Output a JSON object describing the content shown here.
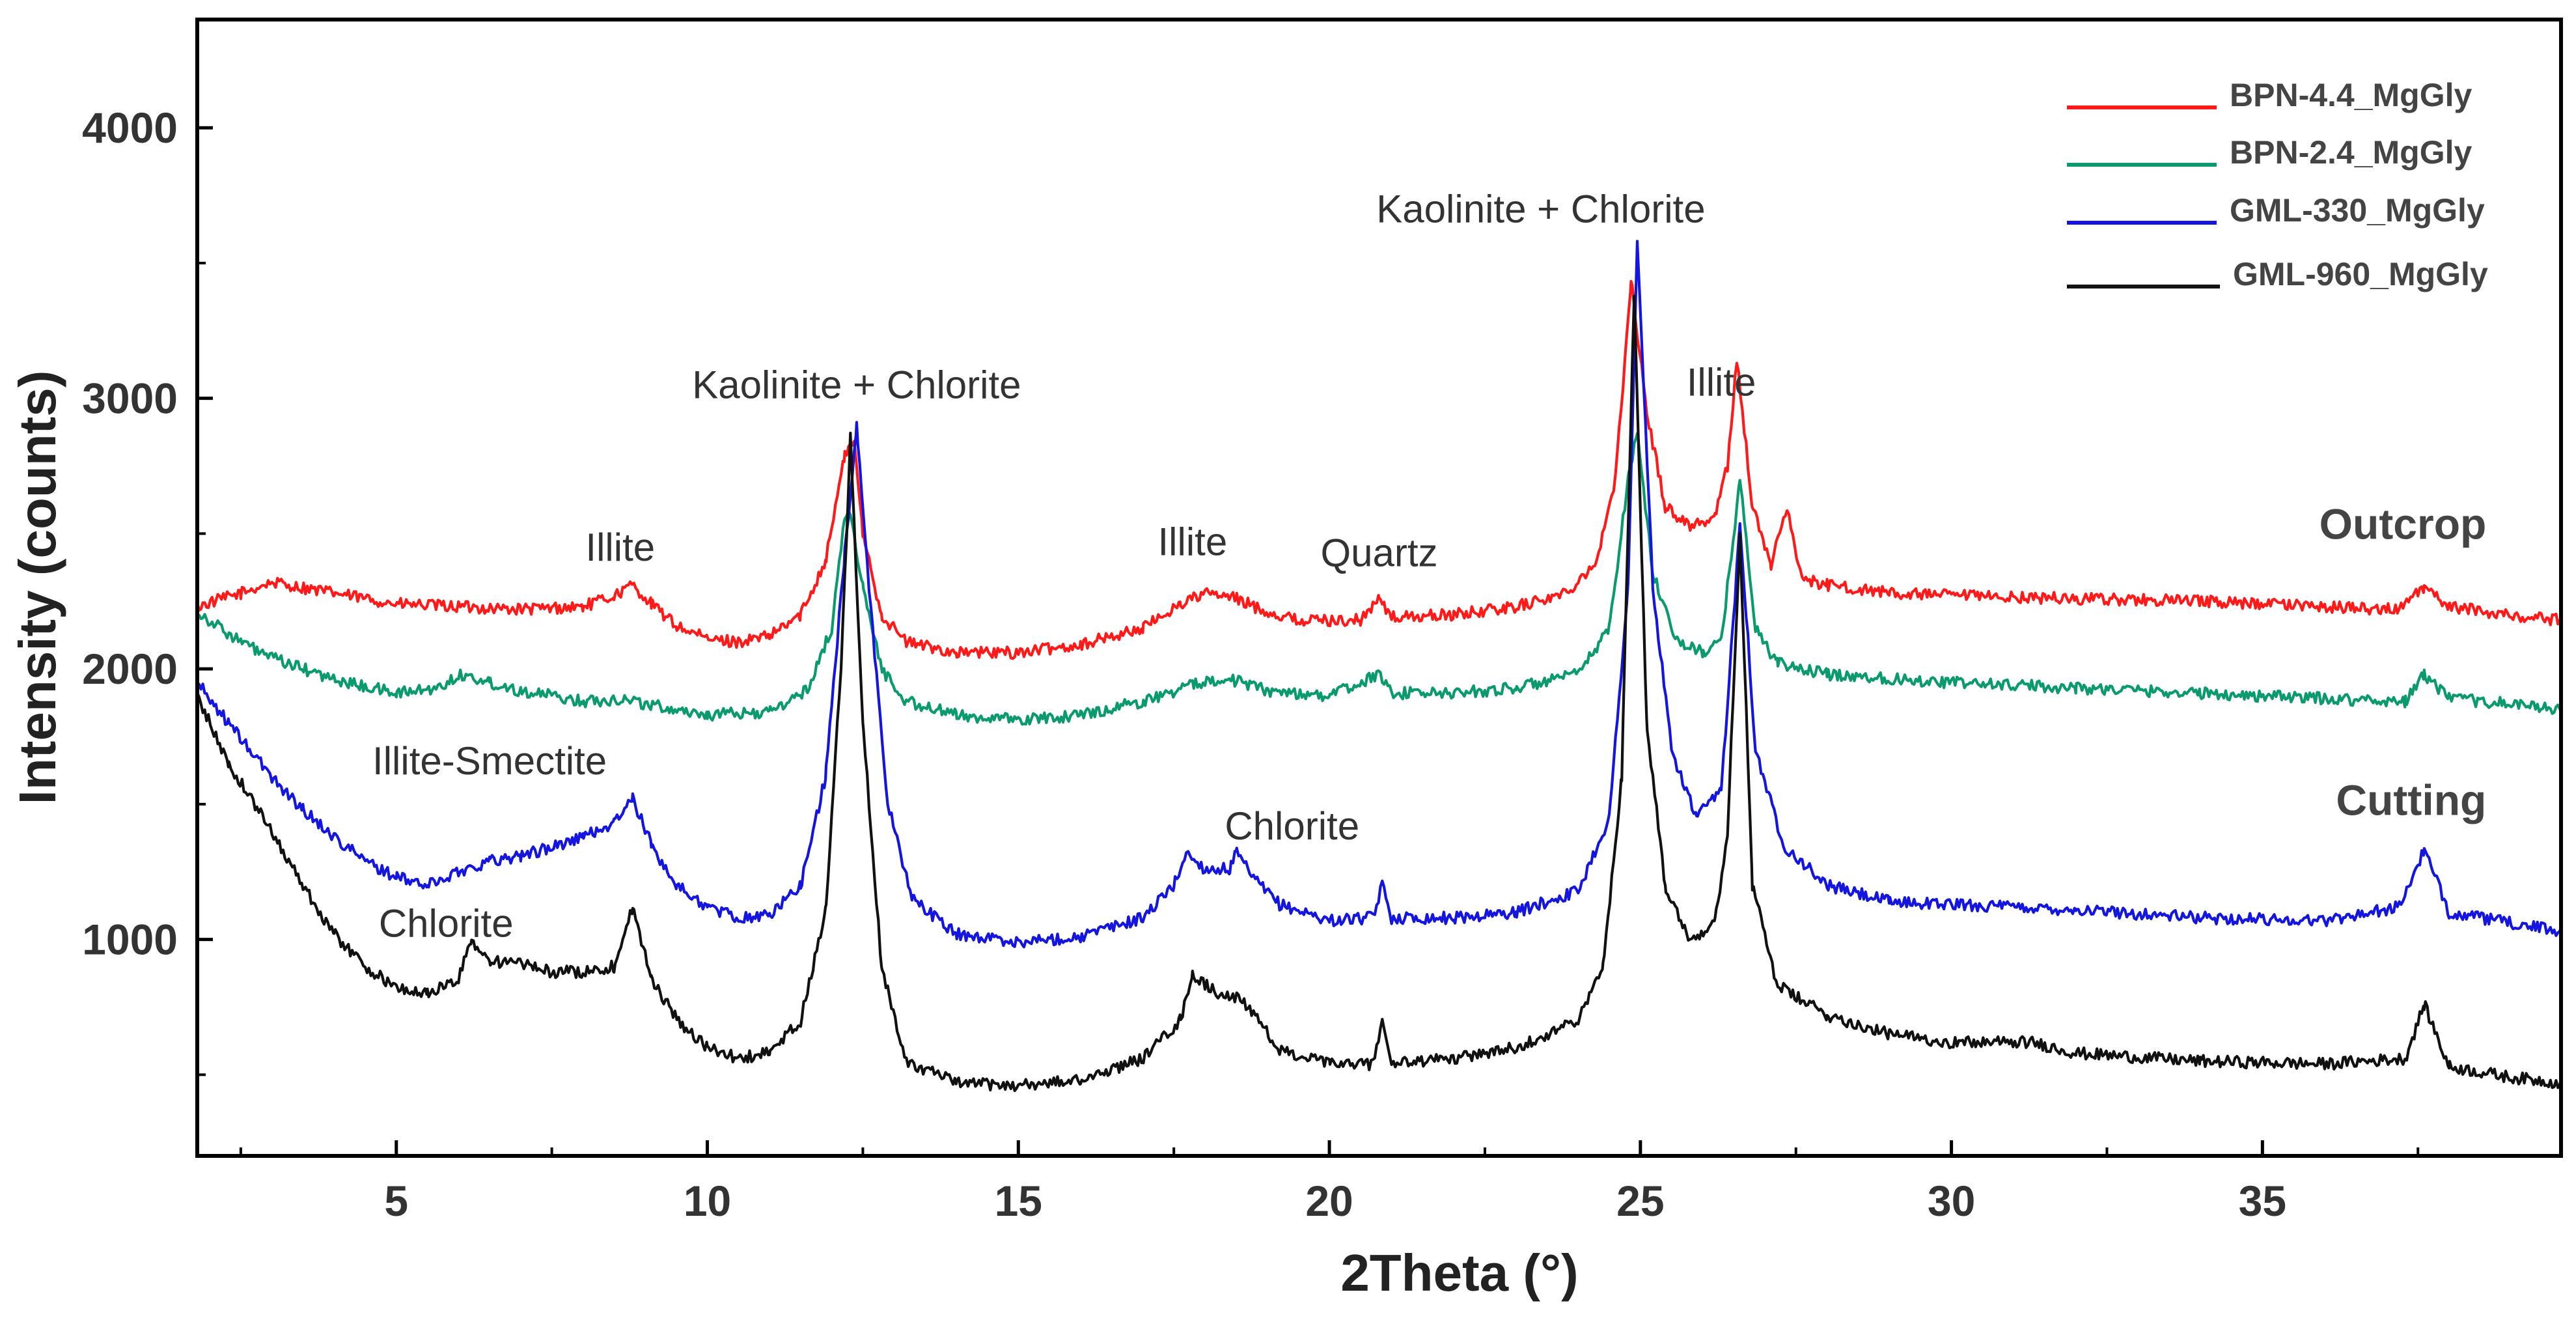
{
  "chart_data": {
    "type": "line",
    "title": "",
    "xlabel": "2Theta (°)",
    "ylabel": "Intensity (counts)",
    "xlim": [
      1.8,
      39.8
    ],
    "ylim": [
      200,
      4400
    ],
    "x_major_ticks": [
      5,
      10,
      15,
      20,
      25,
      30,
      35
    ],
    "x_tick_labels": [
      "5",
      "10",
      "15",
      "20",
      "25",
      "30",
      "35"
    ],
    "y_major_ticks": [
      1000,
      2000,
      3000,
      4000
    ],
    "y_tick_labels": [
      "1000",
      "2000",
      "3000",
      "4000"
    ],
    "legend_position": "top-right",
    "series": [
      {
        "name": "BPN-4.4_MgGly",
        "color": "#ff1a1a",
        "points": [
          [
            1.8,
            2230
          ],
          [
            2.5,
            2280
          ],
          [
            3.0,
            2320
          ],
          [
            4.0,
            2280
          ],
          [
            5.0,
            2240
          ],
          [
            6.0,
            2230
          ],
          [
            7.0,
            2220
          ],
          [
            8.0,
            2230
          ],
          [
            8.5,
            2270
          ],
          [
            8.8,
            2310
          ],
          [
            9.1,
            2240
          ],
          [
            9.5,
            2160
          ],
          [
            10.0,
            2110
          ],
          [
            10.5,
            2100
          ],
          [
            11.0,
            2120
          ],
          [
            11.5,
            2200
          ],
          [
            11.9,
            2400
          ],
          [
            12.2,
            2780
          ],
          [
            12.35,
            2850
          ],
          [
            12.5,
            2500
          ],
          [
            12.8,
            2200
          ],
          [
            13.2,
            2100
          ],
          [
            14.0,
            2060
          ],
          [
            15.0,
            2060
          ],
          [
            16.0,
            2090
          ],
          [
            17.0,
            2150
          ],
          [
            17.6,
            2240
          ],
          [
            18.0,
            2280
          ],
          [
            18.5,
            2260
          ],
          [
            19.0,
            2210
          ],
          [
            19.5,
            2180
          ],
          [
            20.5,
            2180
          ],
          [
            20.8,
            2260
          ],
          [
            21.0,
            2190
          ],
          [
            22.0,
            2200
          ],
          [
            23.0,
            2230
          ],
          [
            23.8,
            2280
          ],
          [
            24.3,
            2400
          ],
          [
            24.6,
            2700
          ],
          [
            24.85,
            3440
          ],
          [
            25.1,
            2950
          ],
          [
            25.4,
            2600
          ],
          [
            25.8,
            2530
          ],
          [
            26.2,
            2560
          ],
          [
            26.4,
            2750
          ],
          [
            26.55,
            3150
          ],
          [
            26.8,
            2600
          ],
          [
            27.1,
            2380
          ],
          [
            27.35,
            2600
          ],
          [
            27.6,
            2330
          ],
          [
            28.0,
            2310
          ],
          [
            29.0,
            2280
          ],
          [
            30.0,
            2270
          ],
          [
            32.0,
            2260
          ],
          [
            34.0,
            2250
          ],
          [
            36.0,
            2230
          ],
          [
            37.2,
            2220
          ],
          [
            37.6,
            2300
          ],
          [
            38.0,
            2230
          ],
          [
            39.0,
            2200
          ],
          [
            39.8,
            2180
          ]
        ]
      },
      {
        "name": "BPN-2.4_MgGly",
        "color": "#0a9a6e",
        "points": [
          [
            1.8,
            2210
          ],
          [
            2.5,
            2100
          ],
          [
            3.0,
            2040
          ],
          [
            4.0,
            1960
          ],
          [
            5.0,
            1910
          ],
          [
            5.7,
            1930
          ],
          [
            6.0,
            1980
          ],
          [
            6.5,
            1950
          ],
          [
            7.0,
            1920
          ],
          [
            8.0,
            1880
          ],
          [
            8.7,
            1890
          ],
          [
            9.0,
            1870
          ],
          [
            10.0,
            1830
          ],
          [
            11.0,
            1840
          ],
          [
            11.6,
            1920
          ],
          [
            12.0,
            2150
          ],
          [
            12.2,
            2550
          ],
          [
            12.3,
            2580
          ],
          [
            12.5,
            2300
          ],
          [
            12.8,
            2000
          ],
          [
            13.2,
            1880
          ],
          [
            14.0,
            1830
          ],
          [
            15.0,
            1810
          ],
          [
            16.0,
            1830
          ],
          [
            17.0,
            1880
          ],
          [
            17.8,
            1940
          ],
          [
            18.3,
            1970
          ],
          [
            19.0,
            1920
          ],
          [
            20.0,
            1900
          ],
          [
            20.8,
            1980
          ],
          [
            21.0,
            1910
          ],
          [
            22.0,
            1910
          ],
          [
            23.0,
            1930
          ],
          [
            24.0,
            1980
          ],
          [
            24.5,
            2150
          ],
          [
            24.8,
            2700
          ],
          [
            24.95,
            2880
          ],
          [
            25.2,
            2350
          ],
          [
            25.6,
            2100
          ],
          [
            26.0,
            2060
          ],
          [
            26.3,
            2100
          ],
          [
            26.45,
            2400
          ],
          [
            26.6,
            2700
          ],
          [
            26.85,
            2150
          ],
          [
            27.2,
            2020
          ],
          [
            28.0,
            1980
          ],
          [
            30.0,
            1950
          ],
          [
            32.0,
            1930
          ],
          [
            34.0,
            1910
          ],
          [
            36.0,
            1890
          ],
          [
            37.3,
            1880
          ],
          [
            37.6,
            1980
          ],
          [
            38.0,
            1890
          ],
          [
            39.0,
            1870
          ],
          [
            39.8,
            1850
          ]
        ]
      },
      {
        "name": "GML-330_MgGly",
        "color": "#1515e0",
        "points": [
          [
            1.8,
            1950
          ],
          [
            2.3,
            1800
          ],
          [
            3.0,
            1600
          ],
          [
            3.5,
            1480
          ],
          [
            4.0,
            1380
          ],
          [
            4.5,
            1290
          ],
          [
            5.0,
            1230
          ],
          [
            5.5,
            1200
          ],
          [
            6.0,
            1250
          ],
          [
            6.5,
            1290
          ],
          [
            7.0,
            1310
          ],
          [
            7.5,
            1340
          ],
          [
            8.0,
            1380
          ],
          [
            8.5,
            1430
          ],
          [
            8.8,
            1520
          ],
          [
            9.1,
            1350
          ],
          [
            9.5,
            1200
          ],
          [
            10.0,
            1120
          ],
          [
            10.5,
            1080
          ],
          [
            11.0,
            1090
          ],
          [
            11.5,
            1200
          ],
          [
            11.9,
            1600
          ],
          [
            12.2,
            2400
          ],
          [
            12.4,
            2900
          ],
          [
            12.6,
            2300
          ],
          [
            12.9,
            1500
          ],
          [
            13.3,
            1150
          ],
          [
            14.0,
            1020
          ],
          [
            15.0,
            990
          ],
          [
            16.0,
            1010
          ],
          [
            17.0,
            1080
          ],
          [
            17.5,
            1200
          ],
          [
            17.7,
            1320
          ],
          [
            18.0,
            1260
          ],
          [
            18.4,
            1260
          ],
          [
            18.5,
            1320
          ],
          [
            18.8,
            1220
          ],
          [
            19.2,
            1130
          ],
          [
            20.0,
            1070
          ],
          [
            20.7,
            1080
          ],
          [
            20.85,
            1200
          ],
          [
            21.0,
            1080
          ],
          [
            22.0,
            1080
          ],
          [
            23.0,
            1100
          ],
          [
            24.0,
            1180
          ],
          [
            24.5,
            1450
          ],
          [
            24.8,
            2300
          ],
          [
            24.95,
            3570
          ],
          [
            25.2,
            2300
          ],
          [
            25.5,
            1700
          ],
          [
            25.9,
            1450
          ],
          [
            26.3,
            1550
          ],
          [
            26.5,
            2200
          ],
          [
            26.6,
            2550
          ],
          [
            26.85,
            1700
          ],
          [
            27.3,
            1350
          ],
          [
            28.0,
            1200
          ],
          [
            29.0,
            1140
          ],
          [
            30.0,
            1130
          ],
          [
            31.0,
            1120
          ],
          [
            32.0,
            1110
          ],
          [
            34.0,
            1080
          ],
          [
            36.0,
            1070
          ],
          [
            37.2,
            1120
          ],
          [
            37.6,
            1330
          ],
          [
            38.0,
            1100
          ],
          [
            39.0,
            1060
          ],
          [
            39.8,
            1030
          ]
        ]
      },
      {
        "name": "GML-960_MgGly",
        "color": "#111111",
        "points": [
          [
            1.8,
            1900
          ],
          [
            2.3,
            1650
          ],
          [
            3.0,
            1400
          ],
          [
            3.5,
            1200
          ],
          [
            4.0,
            1020
          ],
          [
            4.5,
            900
          ],
          [
            5.0,
            820
          ],
          [
            5.5,
            800
          ],
          [
            6.0,
            850
          ],
          [
            6.2,
            1000
          ],
          [
            6.5,
            920
          ],
          [
            7.0,
            910
          ],
          [
            7.5,
            880
          ],
          [
            8.0,
            880
          ],
          [
            8.5,
            900
          ],
          [
            8.8,
            1120
          ],
          [
            9.1,
            850
          ],
          [
            9.6,
            680
          ],
          [
            10.0,
            600
          ],
          [
            10.5,
            560
          ],
          [
            11.0,
            580
          ],
          [
            11.5,
            700
          ],
          [
            11.9,
            1100
          ],
          [
            12.15,
            2000
          ],
          [
            12.3,
            2850
          ],
          [
            12.5,
            1800
          ],
          [
            12.8,
            900
          ],
          [
            13.2,
            550
          ],
          [
            14.0,
            470
          ],
          [
            15.0,
            460
          ],
          [
            16.0,
            480
          ],
          [
            17.0,
            560
          ],
          [
            17.6,
            700
          ],
          [
            17.8,
            870
          ],
          [
            18.2,
            800
          ],
          [
            18.6,
            780
          ],
          [
            19.2,
            590
          ],
          [
            20.0,
            540
          ],
          [
            20.7,
            540
          ],
          [
            20.85,
            700
          ],
          [
            21.0,
            540
          ],
          [
            22.0,
            560
          ],
          [
            23.0,
            600
          ],
          [
            24.0,
            700
          ],
          [
            24.4,
            900
          ],
          [
            24.7,
            1600
          ],
          [
            24.9,
            3400
          ],
          [
            25.1,
            1800
          ],
          [
            25.4,
            1200
          ],
          [
            25.8,
            1000
          ],
          [
            26.2,
            1060
          ],
          [
            26.4,
            1400
          ],
          [
            26.6,
            2500
          ],
          [
            26.8,
            1200
          ],
          [
            27.2,
            830
          ],
          [
            28.0,
            720
          ],
          [
            29.0,
            650
          ],
          [
            30.0,
            620
          ],
          [
            31.3,
            620
          ],
          [
            32.0,
            580
          ],
          [
            34.0,
            550
          ],
          [
            36.0,
            540
          ],
          [
            37.3,
            560
          ],
          [
            37.6,
            760
          ],
          [
            38.0,
            530
          ],
          [
            39.0,
            490
          ],
          [
            39.8,
            470
          ]
        ]
      }
    ],
    "annotations": [
      {
        "text": "Kaolinite + Chlorite",
        "x": 12.4,
        "y": 3000
      },
      {
        "text": "Kaolinite + Chlorite",
        "x": 23.4,
        "y": 3650
      },
      {
        "text": "Illite",
        "x": 8.6,
        "y": 2400
      },
      {
        "text": "Illite",
        "x": 17.8,
        "y": 2420
      },
      {
        "text": "Illite",
        "x": 26.3,
        "y": 3010
      },
      {
        "text": "Quartz",
        "x": 20.8,
        "y": 2380
      },
      {
        "text": "Illite-Smectite",
        "x": 6.5,
        "y": 1610
      },
      {
        "text": "Chlorite",
        "x": 19.4,
        "y": 1370
      },
      {
        "text": "Chlorite",
        "x": 5.8,
        "y": 1010
      }
    ],
    "group_labels": [
      {
        "text": "Outcrop",
        "x": 38.6,
        "y": 2480
      },
      {
        "text": "Cutting",
        "x": 38.6,
        "y": 1460
      }
    ]
  }
}
